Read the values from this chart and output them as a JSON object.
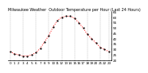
{
  "title": "Milwaukee Weather  Outdoor Temperature per Hour (Last 24 Hours)",
  "hours": [
    0,
    1,
    2,
    3,
    4,
    5,
    6,
    7,
    8,
    9,
    10,
    11,
    12,
    13,
    14,
    15,
    16,
    17,
    18,
    19,
    20,
    21,
    22,
    23
  ],
  "temps": [
    28,
    26,
    25,
    24,
    24,
    25,
    27,
    31,
    37,
    43,
    51,
    57,
    60,
    61,
    61,
    59,
    55,
    50,
    44,
    40,
    36,
    32,
    30,
    28
  ],
  "ylim": [
    20,
    65
  ],
  "yticks": [
    20,
    25,
    30,
    35,
    40,
    45,
    50,
    55,
    60,
    65
  ],
  "ytick_labels": [
    "20",
    "25",
    "30",
    "35",
    "40",
    "45",
    "50",
    "55",
    "60",
    "65"
  ],
  "line_color": "#ff0000",
  "marker_color": "#000000",
  "bg_color": "#ffffff",
  "grid_color": "#888888",
  "title_fontsize": 3.5,
  "tick_fontsize": 3.0,
  "vgrid_positions": [
    0,
    3,
    6,
    9,
    12,
    15,
    18,
    21,
    23
  ]
}
